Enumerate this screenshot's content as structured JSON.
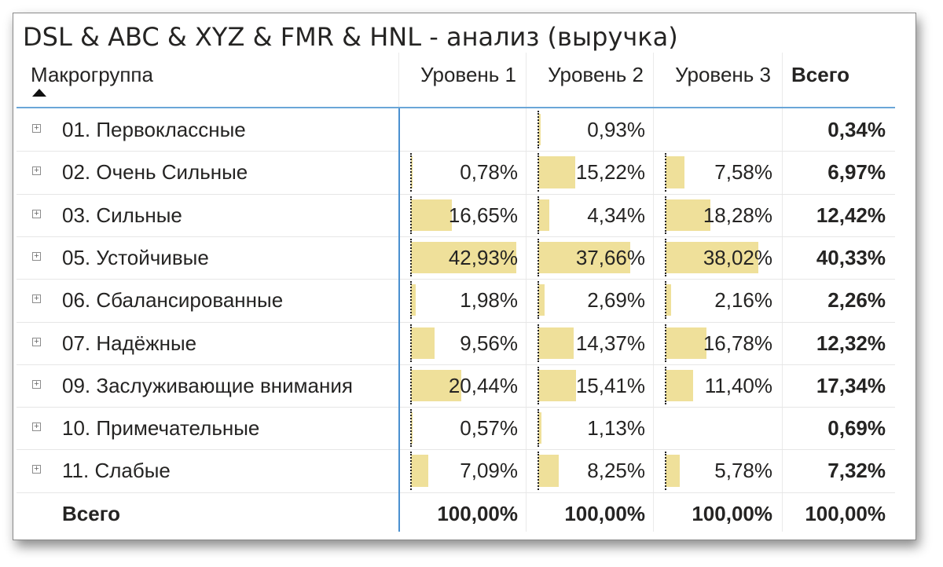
{
  "title": "DSL & ABC & XYZ & FMR & HNL - анализ (выручка)",
  "columns": {
    "row_header": "Макрогруппа",
    "level1": "Уровень 1",
    "level2": "Уровень 2",
    "level3": "Уровень 3",
    "total": "Всего"
  },
  "sort_indicator": "sort-ascending-icon",
  "bar_color": "#efe09a",
  "rows": [
    {
      "label": "01. Первоклассные",
      "l1": "",
      "l2": "0,93%",
      "l3": "",
      "total": "0,34%",
      "l1v": null,
      "l2v": 0.93,
      "l3v": null
    },
    {
      "label": "02. Очень Сильные",
      "l1": "0,78%",
      "l2": "15,22%",
      "l3": "7,58%",
      "total": "6,97%",
      "l1v": 0.78,
      "l2v": 15.22,
      "l3v": 7.58
    },
    {
      "label": "03. Сильные",
      "l1": "16,65%",
      "l2": "4,34%",
      "l3": "18,28%",
      "total": "12,42%",
      "l1v": 16.65,
      "l2v": 4.34,
      "l3v": 18.28
    },
    {
      "label": "05. Устойчивые",
      "l1": "42,93%",
      "l2": "37,66%",
      "l3": "38,02%",
      "total": "40,33%",
      "l1v": 42.93,
      "l2v": 37.66,
      "l3v": 38.02
    },
    {
      "label": "06. Сбалансированные",
      "l1": "1,98%",
      "l2": "2,69%",
      "l3": "2,16%",
      "total": "2,26%",
      "l1v": 1.98,
      "l2v": 2.69,
      "l3v": 2.16
    },
    {
      "label": "07. Надёжные",
      "l1": "9,56%",
      "l2": "14,37%",
      "l3": "16,78%",
      "total": "12,32%",
      "l1v": 9.56,
      "l2v": 14.37,
      "l3v": 16.78
    },
    {
      "label": "09. Заслуживающие внимания",
      "l1": "20,44%",
      "l2": "15,41%",
      "l3": "11,40%",
      "total": "17,34%",
      "l1v": 20.44,
      "l2v": 15.41,
      "l3v": 11.4
    },
    {
      "label": "10. Примечательные",
      "l1": "0,57%",
      "l2": "1,13%",
      "l3": "",
      "total": "0,69%",
      "l1v": 0.57,
      "l2v": 1.13,
      "l3v": null
    },
    {
      "label": "11. Слабые",
      "l1": "7,09%",
      "l2": "8,25%",
      "l3": "5,78%",
      "total": "7,32%",
      "l1v": 7.09,
      "l2v": 8.25,
      "l3v": 5.78
    }
  ],
  "totals": {
    "label": "Всего",
    "l1": "100,00%",
    "l2": "100,00%",
    "l3": "100,00%",
    "total": "100,00%"
  }
}
